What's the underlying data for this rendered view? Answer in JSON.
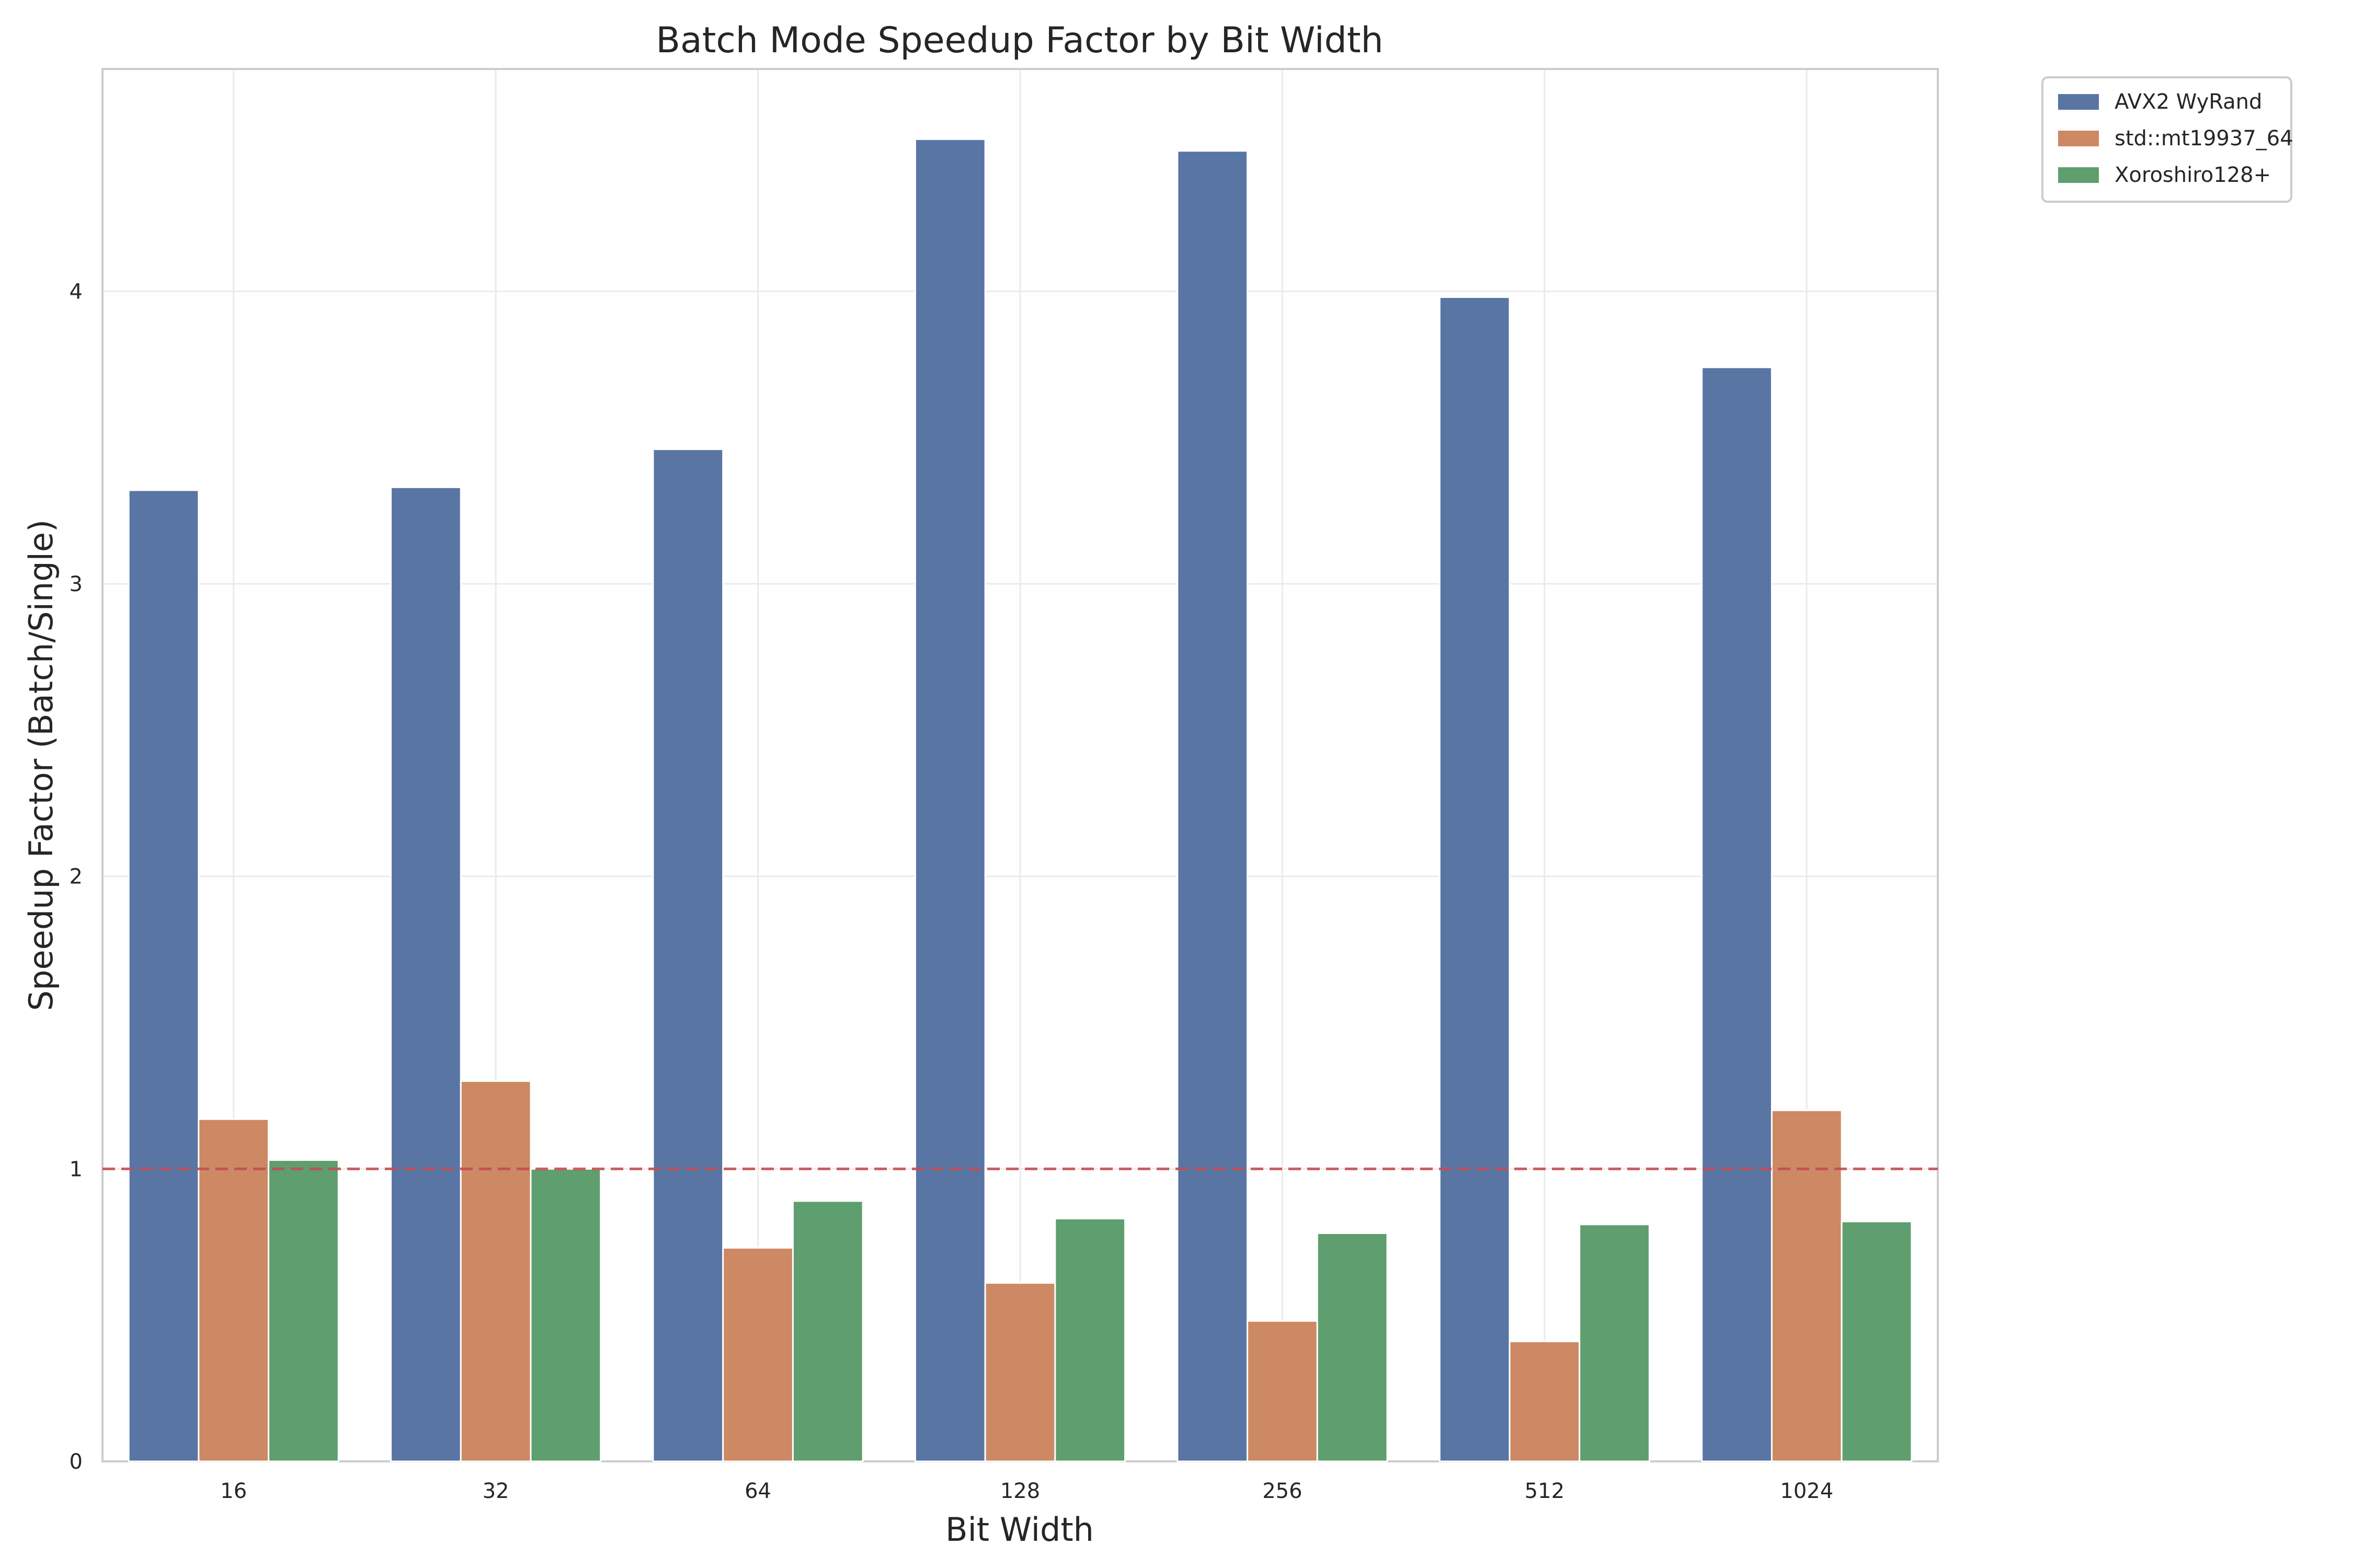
{
  "chart_data": {
    "type": "bar",
    "title": "Batch Mode Speedup Factor by Bit Width",
    "xlabel": "Bit Width",
    "ylabel": "Speedup Factor (Batch/Single)",
    "categories": [
      "16",
      "32",
      "64",
      "128",
      "256",
      "512",
      "1024"
    ],
    "series": [
      {
        "name": "AVX2 WyRand",
        "color": "#5975a4",
        "values": [
          3.32,
          3.33,
          3.46,
          4.52,
          4.48,
          3.98,
          3.74
        ]
      },
      {
        "name": "std::mt19937_64",
        "color": "#cc8963",
        "values": [
          1.17,
          1.3,
          0.73,
          0.61,
          0.48,
          0.41,
          1.2
        ]
      },
      {
        "name": "Xoroshiro128+",
        "color": "#5f9e6e",
        "values": [
          1.03,
          1.0,
          0.89,
          0.83,
          0.78,
          0.81,
          0.82
        ]
      }
    ],
    "ylim": [
      0,
      4.76
    ],
    "yticks": [
      0,
      1,
      2,
      3,
      4
    ],
    "reference_line": {
      "value": 1,
      "color": "#c44e52",
      "style": "dashed"
    },
    "grid": true,
    "legend_position": "outside-top-right"
  }
}
